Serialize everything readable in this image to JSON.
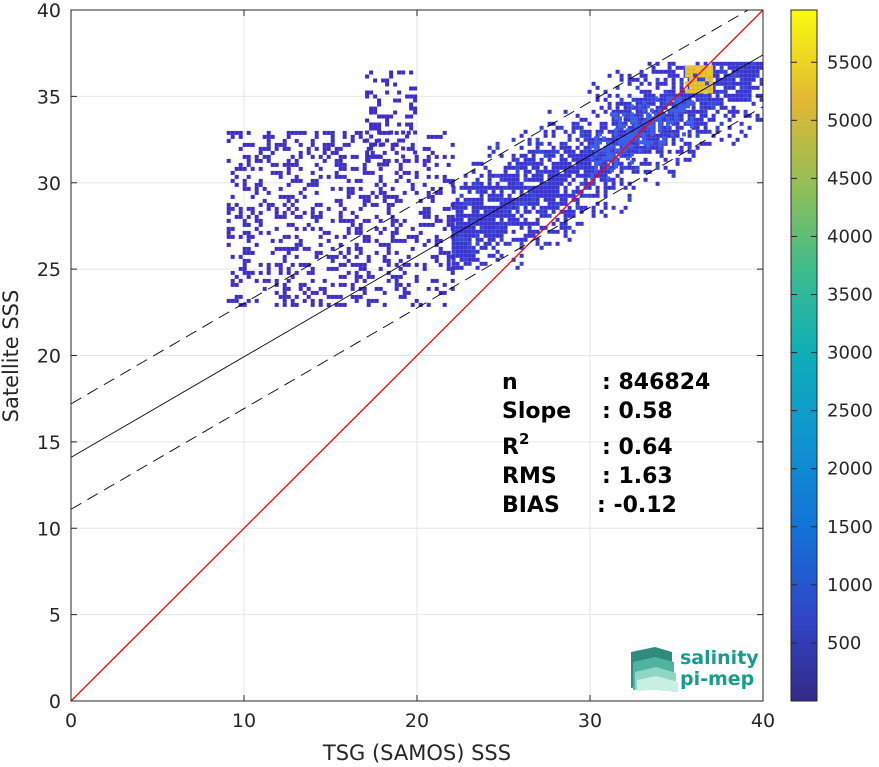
{
  "chart_data": {
    "type": "heatmap",
    "title": "",
    "xlabel": "TSG (SAMOS) SSS",
    "ylabel": "Satellite SSS",
    "xlim": [
      0,
      40
    ],
    "ylim": [
      0,
      40
    ],
    "xticks": [
      "0",
      "10",
      "20",
      "30",
      "40"
    ],
    "yticks": [
      "0",
      "5",
      "10",
      "15",
      "20",
      "25",
      "30",
      "35",
      "40"
    ],
    "grid": true,
    "colorbar": {
      "range": [
        0,
        5950
      ],
      "ticks": [
        "500",
        "1000",
        "1500",
        "2000",
        "2500",
        "3000",
        "3500",
        "4000",
        "4500",
        "5000",
        "5500"
      ],
      "colormap": "parula"
    },
    "lines": [
      {
        "kind": "identity",
        "color": "#ff0000",
        "x": [
          0,
          40
        ],
        "y": [
          0,
          40
        ]
      },
      {
        "kind": "fit",
        "color": "#000000",
        "style": "solid",
        "x": [
          0,
          40
        ],
        "y": [
          14.1,
          37.4
        ]
      },
      {
        "kind": "fit-upper",
        "color": "#000000",
        "style": "dashed",
        "x": [
          0,
          40
        ],
        "y": [
          17.2,
          40.5
        ]
      },
      {
        "kind": "fit-lower",
        "color": "#000000",
        "style": "dashed",
        "x": [
          0,
          40
        ],
        "y": [
          11.1,
          34.4
        ]
      }
    ],
    "density_regions": [
      {
        "x": [
          22,
          40
        ],
        "y": [
          25,
          37
        ],
        "level": "low"
      },
      {
        "x": [
          9,
          22
        ],
        "y": [
          23,
          33
        ],
        "level": "sparse"
      },
      {
        "x": [
          17,
          20
        ],
        "y": [
          31,
          36.5
        ],
        "level": "sparse"
      },
      {
        "x": [
          30,
          36
        ],
        "y": [
          29,
          35
        ],
        "level": "medium"
      },
      {
        "x": [
          35.5,
          37
        ],
        "y": [
          35.3,
          36.8
        ],
        "level": "peak"
      }
    ],
    "stats": [
      {
        "label": "n",
        "value": ": 846824"
      },
      {
        "label": "Slope",
        "value": ": 0.58"
      },
      {
        "label": "R",
        "sup": "2",
        "value": ": 0.64"
      },
      {
        "label": "RMS",
        "value": ": 1.63"
      },
      {
        "label": "BIAS",
        "value": ": -0.12"
      }
    ]
  },
  "logo": {
    "line1": "salinity",
    "line2": "pi-mep",
    "color": "#1a9c8c"
  }
}
